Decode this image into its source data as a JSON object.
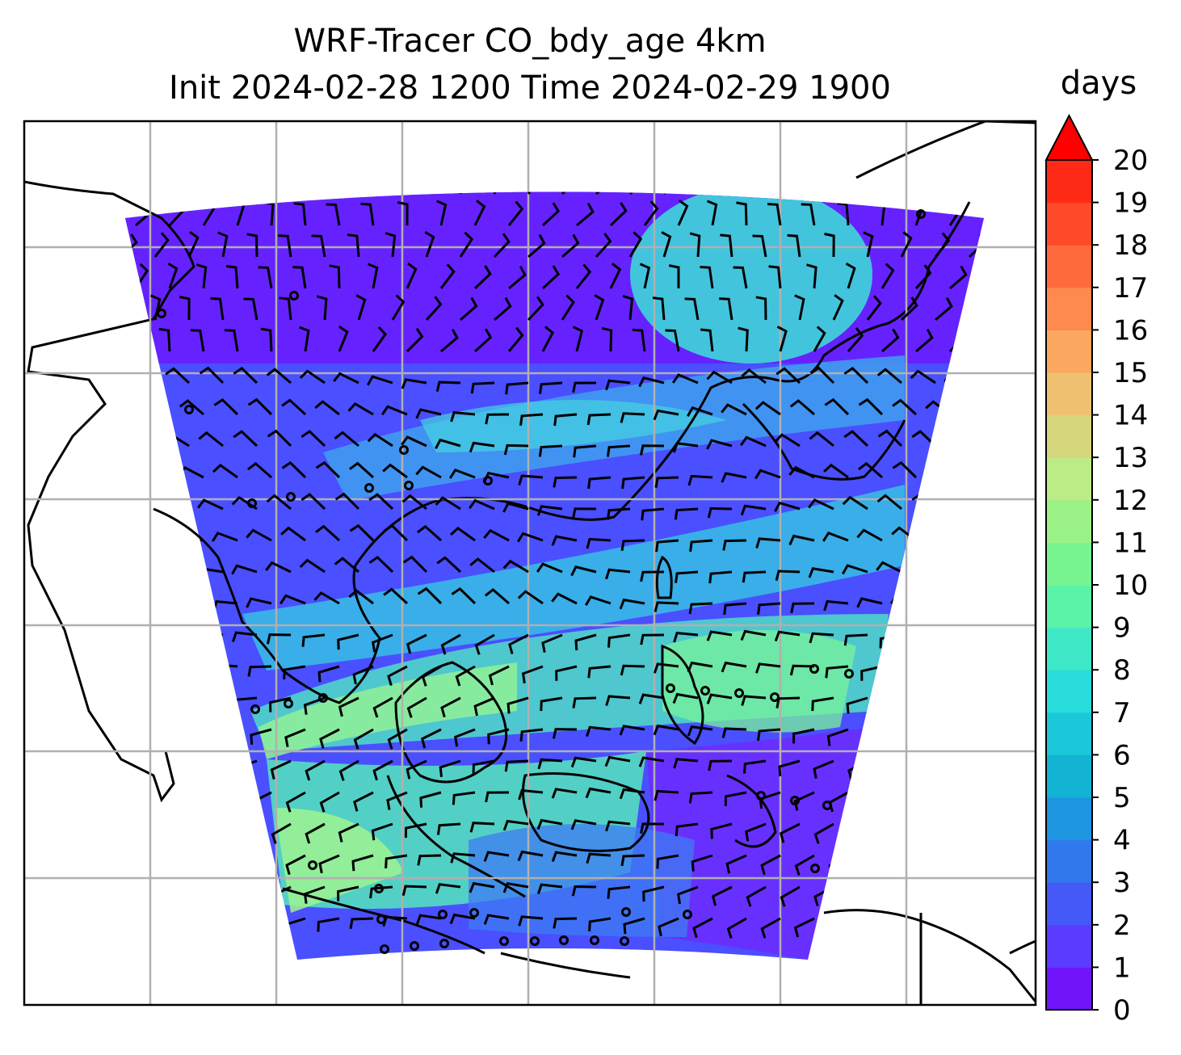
{
  "title": {
    "line1": "WRF-Tracer CO_bdy_age 4km",
    "line2": "Init 2024-02-28 1200 Time 2024-02-29 1900"
  },
  "colorbar": {
    "unit": "days",
    "ticks": [
      "0",
      "1",
      "2",
      "3",
      "4",
      "5",
      "6",
      "7",
      "8",
      "9",
      "10",
      "11",
      "12",
      "13",
      "14",
      "15",
      "16",
      "17",
      "18",
      "19",
      "20"
    ],
    "extend": "max",
    "colors": [
      "#7214fa",
      "#5a3bff",
      "#4459f6",
      "#3178ec",
      "#1e95e0",
      "#12b3d3",
      "#1ac8d9",
      "#28dcdb",
      "#3ee8c6",
      "#5af3a8",
      "#78f590",
      "#9af286",
      "#bcec85",
      "#d5d67c",
      "#efc06f",
      "#fca861",
      "#fe8a4f",
      "#ff6a3d",
      "#ff4a2a",
      "#ff2a16"
    ],
    "extend_color": "#ff0000"
  },
  "map": {
    "gridlines": "on",
    "field_colors": {
      "low": "#6e2bff",
      "mid": "#3b6ff2",
      "high": "#3fe3c8",
      "peak": "#9af296"
    }
  }
}
